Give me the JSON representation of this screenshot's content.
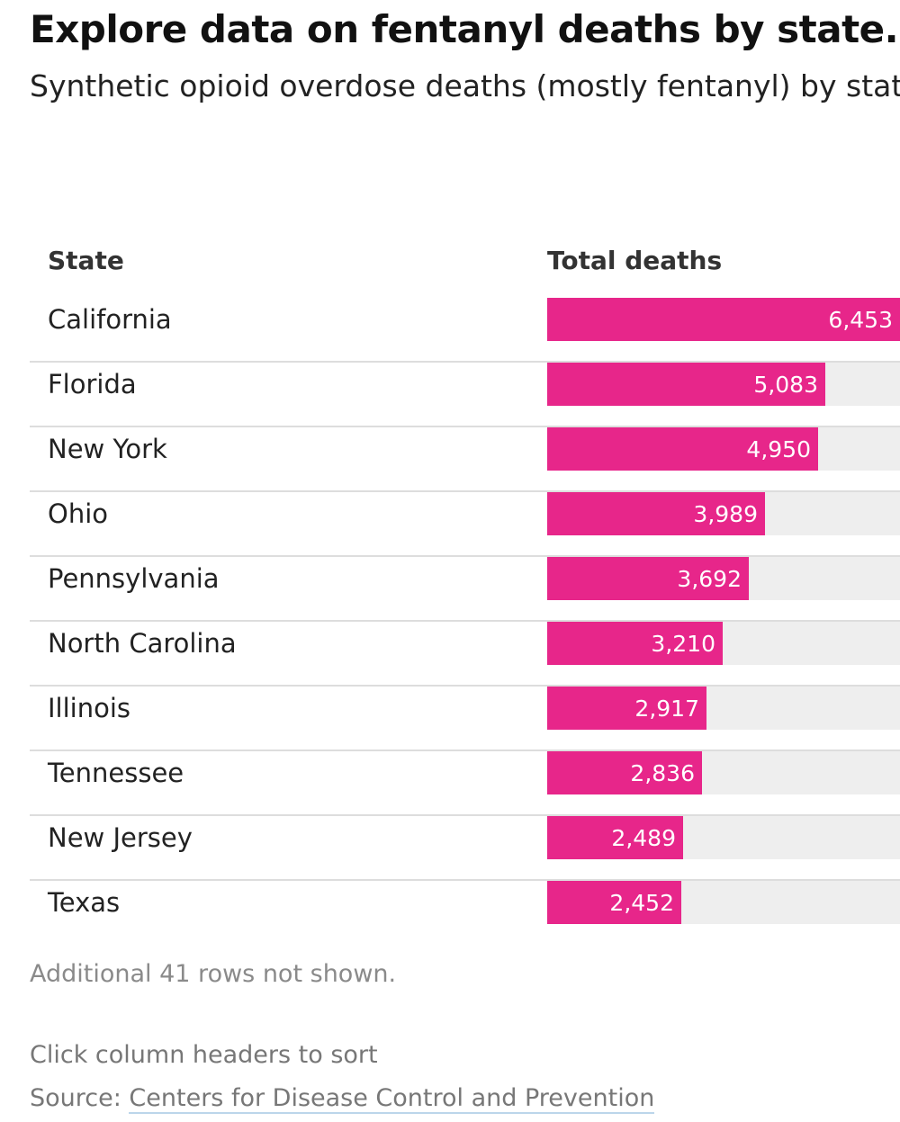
{
  "header": {
    "title": "Explore data on fentanyl deaths by state.",
    "subtitle": "Synthetic opioid overdose deaths (mostly fentanyl) by state"
  },
  "table": {
    "columns": [
      "State",
      "Total deaths"
    ]
  },
  "chart_data": {
    "type": "table",
    "title": "Synthetic opioid overdose deaths (mostly fentanyl) by state",
    "columns": [
      "State",
      "Total deaths"
    ],
    "rows": [
      {
        "state": "California",
        "value": 6453,
        "label": "6,453"
      },
      {
        "state": "Florida",
        "value": 5083,
        "label": "5,083"
      },
      {
        "state": "New York",
        "value": 4950,
        "label": "4,950"
      },
      {
        "state": "Ohio",
        "value": 3989,
        "label": "3,989"
      },
      {
        "state": "Pennsylvania",
        "value": 3692,
        "label": "3,692"
      },
      {
        "state": "North Carolina",
        "value": 3210,
        "label": "3,210"
      },
      {
        "state": "Illinois",
        "value": 2917,
        "label": "2,917"
      },
      {
        "state": "Tennessee",
        "value": 2836,
        "label": "2,836"
      },
      {
        "state": "New Jersey",
        "value": 2489,
        "label": "2,489"
      },
      {
        "state": "Texas",
        "value": 2452,
        "label": "2,452"
      }
    ],
    "bar_max": 6453
  },
  "footer": {
    "note": "Additional 41 rows not shown.",
    "hint": "Click column headers to sort",
    "source_prefix": "Source: ",
    "source_link": "Centers for Disease Control and Prevention"
  },
  "colors": {
    "bar": "#e7268a",
    "track": "#eeeeee"
  }
}
